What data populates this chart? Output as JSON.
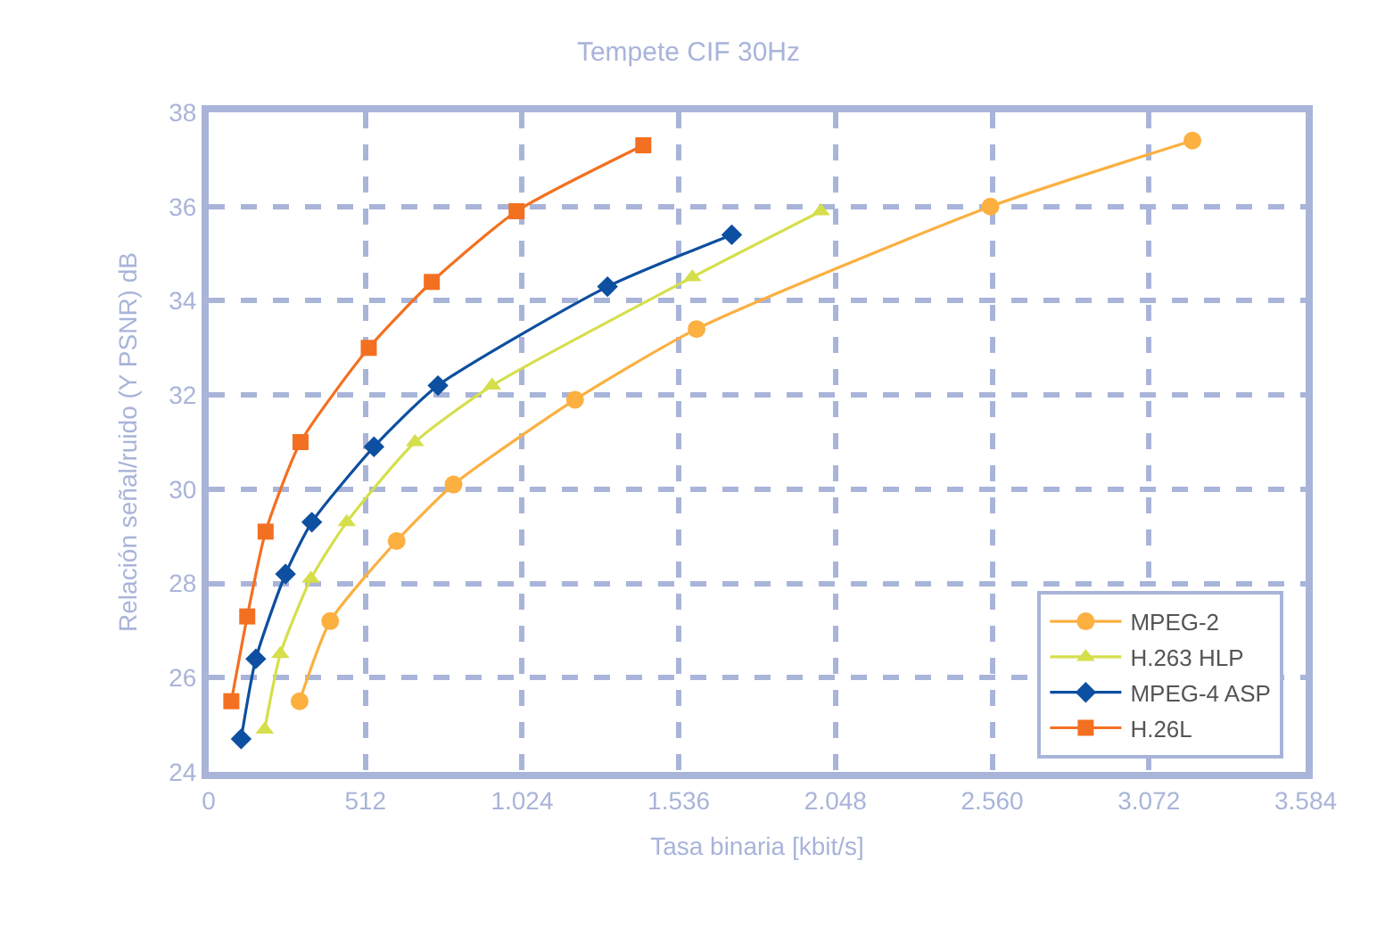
{
  "chart_data": {
    "type": "line",
    "title": "Tempete CIF 30Hz",
    "xlabel": "Tasa binaria [kbit/s]",
    "ylabel": "Relación señal/ruido (Y PSNR) dB",
    "xlim": [
      0,
      3584
    ],
    "xticks": [
      0,
      {
        "value": 512,
        "label": "512"
      },
      {
        "value": 1024,
        "label": "1.024"
      },
      {
        "value": 1536,
        "label": "1.536"
      },
      {
        "value": 2048,
        "label": "2.048"
      },
      {
        "value": 2560,
        "label": "2.560"
      },
      {
        "value": 3072,
        "label": "3.072"
      },
      {
        "value": 3584,
        "label": "3.584"
      }
    ],
    "ylim": [
      24,
      38
    ],
    "yticks": [
      24,
      26,
      28,
      30,
      32,
      34,
      36,
      38
    ],
    "grid": true,
    "legend": "bottom right",
    "series": [
      {
        "name": "MPEG-2",
        "color": "#fbb040",
        "marker": "circle",
        "x": [
          297,
          397,
          614,
          800,
          1197,
          1594,
          2554,
          3214
        ],
        "values": [
          25.5,
          27.2,
          28.9,
          30.1,
          31.9,
          33.4,
          36.0,
          37.4
        ]
      },
      {
        "name": "H.263 HLP",
        "color": "#d5df4b",
        "marker": "triangle",
        "x": [
          183,
          234,
          334,
          451,
          674,
          926,
          1580,
          2000
        ],
        "values": [
          24.9,
          26.5,
          28.1,
          29.3,
          31.0,
          32.2,
          34.5,
          35.9
        ]
      },
      {
        "name": "MPEG-4 ASP",
        "color": "#0d4fa0",
        "marker": "diamond",
        "x": [
          106,
          154,
          251,
          337,
          540,
          749,
          1303,
          1709
        ],
        "values": [
          24.7,
          26.4,
          28.2,
          29.3,
          30.9,
          32.2,
          34.3,
          35.4
        ]
      },
      {
        "name": "H.26L",
        "color": "#f37021",
        "marker": "square",
        "x": [
          74,
          126,
          186,
          300,
          523,
          729,
          1006,
          1420
        ],
        "values": [
          25.5,
          27.3,
          29.1,
          31.0,
          33.0,
          34.4,
          35.9,
          37.3
        ]
      }
    ]
  }
}
